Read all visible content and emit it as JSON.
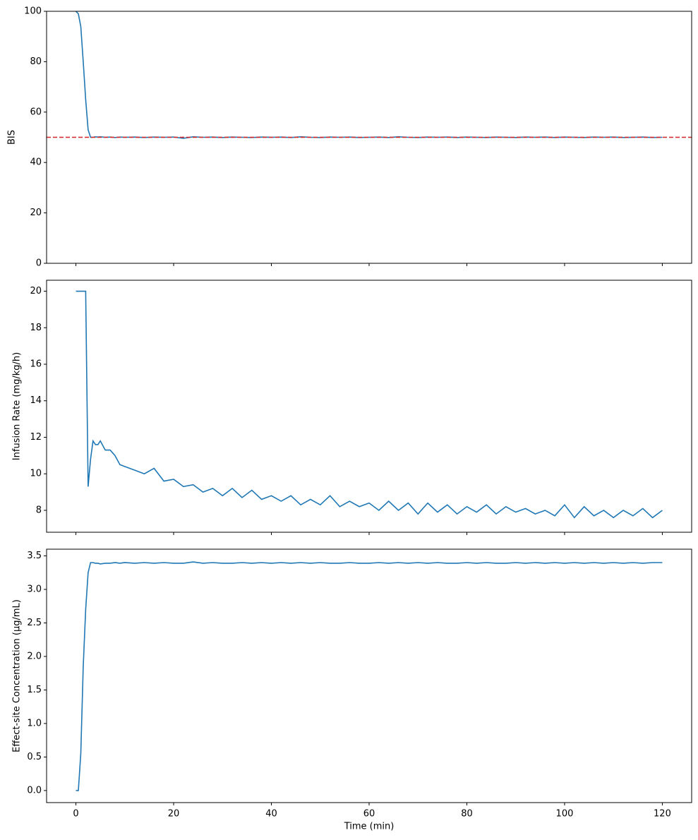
{
  "chart_data": [
    {
      "type": "line",
      "ylabel": "BIS",
      "ylim": [
        0,
        100
      ],
      "yticks": [
        0,
        20,
        40,
        60,
        80,
        100
      ],
      "target": 50,
      "target_color": "#d62728",
      "target_style": "dashed",
      "x": [
        0,
        0.5,
        1,
        1.5,
        2,
        2.5,
        3,
        3.5,
        4,
        4.5,
        5,
        6,
        7,
        8,
        9,
        10,
        12,
        14,
        16,
        18,
        20,
        22,
        24,
        26,
        28,
        30,
        32,
        34,
        36,
        38,
        40,
        42,
        44,
        46,
        48,
        50,
        52,
        54,
        56,
        58,
        60,
        62,
        64,
        66,
        68,
        70,
        72,
        74,
        76,
        78,
        80,
        82,
        84,
        86,
        88,
        90,
        92,
        94,
        96,
        98,
        100,
        102,
        104,
        106,
        108,
        110,
        112,
        114,
        116,
        118,
        120
      ],
      "series": [
        {
          "color": "#1f77b4",
          "values": [
            100,
            99,
            94,
            80,
            65,
            53,
            50,
            50,
            50.2,
            50.1,
            50.2,
            50,
            50.1,
            49.9,
            50.1,
            50,
            50.1,
            49.9,
            50.1,
            50,
            50.1,
            49.6,
            50.2,
            50,
            50.1,
            49.9,
            50.1,
            50,
            49.9,
            50.1,
            50,
            50.1,
            49.9,
            50.2,
            50,
            49.9,
            50.1,
            50,
            50.1,
            49.9,
            50,
            50.1,
            49.9,
            50.2,
            50,
            49.9,
            50.1,
            50,
            50.1,
            49.9,
            50.1,
            50,
            49.9,
            50.1,
            50,
            49.9,
            50.1,
            50,
            50.1,
            49.9,
            50.1,
            50,
            49.9,
            50.1,
            50,
            50.1,
            49.9,
            50,
            50.1,
            49.9,
            50
          ]
        }
      ]
    },
    {
      "type": "line",
      "ylabel": "Infusion Rate (mg/kg/h)",
      "ylim": [
        6.8,
        20.6
      ],
      "yticks": [
        8,
        10,
        12,
        14,
        16,
        18,
        20
      ],
      "x": [
        0,
        0.5,
        1,
        1.5,
        2,
        2.5,
        3,
        3.5,
        4,
        4.5,
        5,
        6,
        7,
        8,
        9,
        10,
        12,
        14,
        16,
        18,
        20,
        22,
        24,
        26,
        28,
        30,
        32,
        34,
        36,
        38,
        40,
        42,
        44,
        46,
        48,
        50,
        52,
        54,
        56,
        58,
        60,
        62,
        64,
        66,
        68,
        70,
        72,
        74,
        76,
        78,
        80,
        82,
        84,
        86,
        88,
        90,
        92,
        94,
        96,
        98,
        100,
        102,
        104,
        106,
        108,
        110,
        112,
        114,
        116,
        118,
        120
      ],
      "series": [
        {
          "color": "#1f77b4",
          "values": [
            20,
            20,
            20,
            20,
            20,
            9.3,
            10.8,
            11.8,
            11.6,
            11.6,
            11.8,
            11.3,
            11.3,
            11.0,
            10.5,
            10.4,
            10.2,
            10.0,
            10.3,
            9.6,
            9.7,
            9.3,
            9.4,
            9.0,
            9.2,
            8.8,
            9.2,
            8.7,
            9.1,
            8.6,
            8.8,
            8.5,
            8.8,
            8.3,
            8.6,
            8.3,
            8.8,
            8.2,
            8.5,
            8.2,
            8.4,
            8.0,
            8.5,
            8.0,
            8.4,
            7.8,
            8.4,
            7.9,
            8.3,
            7.8,
            8.2,
            7.9,
            8.3,
            7.8,
            8.2,
            7.9,
            8.1,
            7.8,
            8.0,
            7.7,
            8.3,
            7.6,
            8.2,
            7.7,
            8.0,
            7.6,
            8.0,
            7.7,
            8.1,
            7.6,
            8.0
          ]
        }
      ]
    },
    {
      "type": "line",
      "ylabel": "Effect-site Concentration (µg/mL)",
      "xlabel": "Time (min)",
      "xlim": [
        -6,
        126
      ],
      "xticks": [
        0,
        20,
        40,
        60,
        80,
        100,
        120
      ],
      "ylim": [
        -0.18,
        3.6
      ],
      "yticks": [
        {
          "value": 0,
          "label": "0.0"
        },
        0.5,
        {
          "value": 1,
          "label": "1.0"
        },
        1.5,
        {
          "value": 2,
          "label": "2.0"
        },
        2.5,
        {
          "value": 3,
          "label": "3.0"
        },
        3.5
      ],
      "x": [
        0,
        0.5,
        1,
        1.5,
        2,
        2.5,
        3,
        3.5,
        4,
        4.5,
        5,
        6,
        7,
        8,
        9,
        10,
        12,
        14,
        16,
        18,
        20,
        22,
        24,
        26,
        28,
        30,
        32,
        34,
        36,
        38,
        40,
        42,
        44,
        46,
        48,
        50,
        52,
        54,
        56,
        58,
        60,
        62,
        64,
        66,
        68,
        70,
        72,
        74,
        76,
        78,
        80,
        82,
        84,
        86,
        88,
        90,
        92,
        94,
        96,
        98,
        100,
        102,
        104,
        106,
        108,
        110,
        112,
        114,
        116,
        118,
        120
      ],
      "series": [
        {
          "color": "#1f77b4",
          "values": [
            0,
            0,
            0.55,
            1.85,
            2.7,
            3.25,
            3.4,
            3.4,
            3.39,
            3.39,
            3.38,
            3.39,
            3.39,
            3.4,
            3.39,
            3.4,
            3.39,
            3.4,
            3.39,
            3.4,
            3.39,
            3.39,
            3.41,
            3.39,
            3.4,
            3.39,
            3.39,
            3.4,
            3.39,
            3.4,
            3.39,
            3.4,
            3.39,
            3.4,
            3.39,
            3.4,
            3.39,
            3.39,
            3.4,
            3.39,
            3.39,
            3.4,
            3.39,
            3.4,
            3.39,
            3.4,
            3.39,
            3.4,
            3.39,
            3.39,
            3.4,
            3.39,
            3.4,
            3.39,
            3.39,
            3.4,
            3.39,
            3.4,
            3.39,
            3.4,
            3.39,
            3.4,
            3.39,
            3.4,
            3.39,
            3.4,
            3.39,
            3.4,
            3.39,
            3.4,
            3.4
          ]
        }
      ]
    }
  ]
}
